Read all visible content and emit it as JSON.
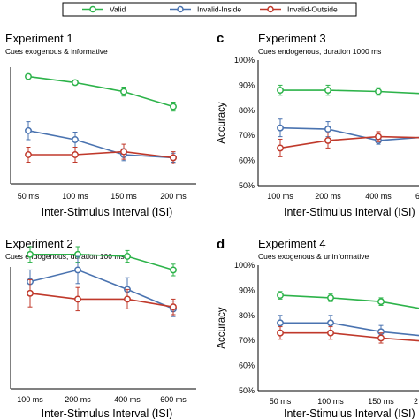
{
  "legend": [
    {
      "label": "Valid",
      "color": "#2db34a"
    },
    {
      "label": "Invalid-Inside",
      "color": "#4a73b0"
    },
    {
      "label": "Invalid-Outside",
      "color": "#c0392b"
    }
  ],
  "chart_data": [
    {
      "type": "line",
      "letter": "",
      "title": "Experiment 1",
      "subtitle": "Cues exogenous & informative",
      "xlabel": "Inter-Stimulus Interval (ISI)",
      "ylabel": "",
      "categories": [
        "50 ms",
        "100 ms",
        "150 ms",
        "200 ms"
      ],
      "ylim": [
        50,
        100
      ],
      "yticks": [],
      "series": [
        {
          "name": "Valid",
          "values": [
            91,
            89,
            86,
            81
          ],
          "errors": [
            0,
            0,
            1.5,
            1.5
          ]
        },
        {
          "name": "Invalid-Inside",
          "values": [
            73,
            70,
            65,
            64
          ],
          "errors": [
            3,
            2.5,
            2,
            1.5
          ]
        },
        {
          "name": "Invalid-Outside",
          "values": [
            65,
            65,
            66,
            64
          ],
          "errors": [
            2.5,
            2.5,
            2.5,
            2
          ]
        }
      ]
    },
    {
      "type": "line",
      "letter": "c",
      "title": "Experiment 3",
      "subtitle": "Cues endogenous, duration 1000 ms",
      "xlabel": "Inter-Stimulus Interval (ISI)",
      "ylabel": "Accuracy",
      "categories": [
        "100 ms",
        "200 ms",
        "400 ms",
        "6"
      ],
      "ylim": [
        50,
        100
      ],
      "yticks": [
        "50%",
        "60%",
        "70%",
        "80%",
        "90%",
        "100%"
      ],
      "series": [
        {
          "name": "Valid",
          "values": [
            88,
            88,
            87.5,
            86.5
          ],
          "errors": [
            2,
            2,
            1.5,
            1.5
          ]
        },
        {
          "name": "Invalid-Inside",
          "values": [
            73,
            72.5,
            68,
            69.5
          ],
          "errors": [
            3.5,
            3,
            1.5,
            1.5
          ]
        },
        {
          "name": "Invalid-Outside",
          "values": [
            65,
            68,
            69.5,
            69
          ],
          "errors": [
            3.5,
            3,
            2,
            1.5
          ]
        }
      ]
    },
    {
      "type": "line",
      "letter": "",
      "title": "Experiment 2",
      "subtitle": "Cues endogenous, duration 100 ms",
      "xlabel": "Inter-Stimulus Interval (ISI)",
      "ylabel": "",
      "categories": [
        "100 ms",
        "200 ms",
        "400 ms",
        "600 ms"
      ],
      "ylim": [
        50,
        100
      ],
      "yticks": [],
      "series": [
        {
          "name": "Valid",
          "values": [
            88,
            88,
            87.5,
            84
          ],
          "errors": [
            2,
            2,
            1.5,
            1.5
          ]
        },
        {
          "name": "Invalid-Inside",
          "values": [
            81,
            84,
            79,
            74
          ],
          "errors": [
            3,
            3.5,
            3,
            2
          ]
        },
        {
          "name": "Invalid-Outside",
          "values": [
            78,
            76.5,
            76.5,
            74.5
          ],
          "errors": [
            3.5,
            3,
            2.5,
            2
          ]
        }
      ]
    },
    {
      "type": "line",
      "letter": "d",
      "title": "Experiment 4",
      "subtitle": "Cues exogenous & uninformative",
      "xlabel": "Inter-Stimulus Interval (ISI)",
      "ylabel": "Accuracy",
      "categories": [
        "50 ms",
        "100 ms",
        "150 ms",
        "2"
      ],
      "ylim": [
        50,
        100
      ],
      "yticks": [
        "50%",
        "60%",
        "70%",
        "80%",
        "90%",
        "100%"
      ],
      "series": [
        {
          "name": "Valid",
          "values": [
            88,
            87,
            85.5,
            82
          ],
          "errors": [
            1.5,
            1.5,
            1.5,
            1.5
          ]
        },
        {
          "name": "Invalid-Inside",
          "values": [
            77,
            77,
            73.5,
            71.5
          ],
          "errors": [
            3,
            3,
            2.5,
            2
          ]
        },
        {
          "name": "Invalid-Outside",
          "values": [
            73,
            73,
            71,
            69.5
          ],
          "errors": [
            2.5,
            2.5,
            2,
            2
          ]
        }
      ]
    }
  ]
}
